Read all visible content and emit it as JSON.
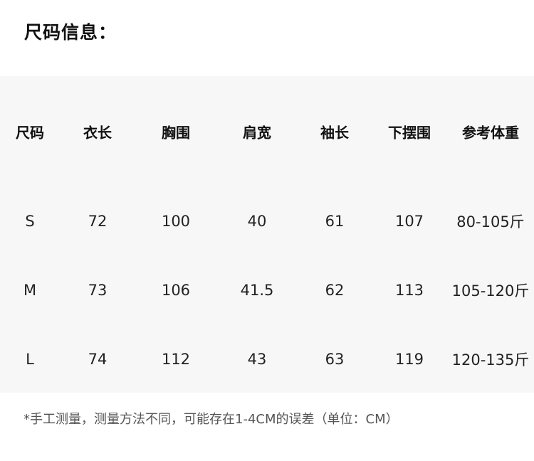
{
  "header": {
    "title": "尺码信息："
  },
  "table": {
    "columns": [
      "尺码",
      "衣长",
      "胸围",
      "肩宽",
      "袖长",
      "下摆围",
      "参考体重"
    ],
    "rows": [
      [
        "S",
        "72",
        "100",
        "40",
        "61",
        "107",
        "80-105斤"
      ],
      [
        "M",
        "73",
        "106",
        "41.5",
        "62",
        "113",
        "105-120斤"
      ],
      [
        "L",
        "74",
        "112",
        "43",
        "63",
        "119",
        "120-135斤"
      ]
    ]
  },
  "footnote": "*手工测量，测量方法不同，可能存在1-4CM的误差（单位：CM）"
}
